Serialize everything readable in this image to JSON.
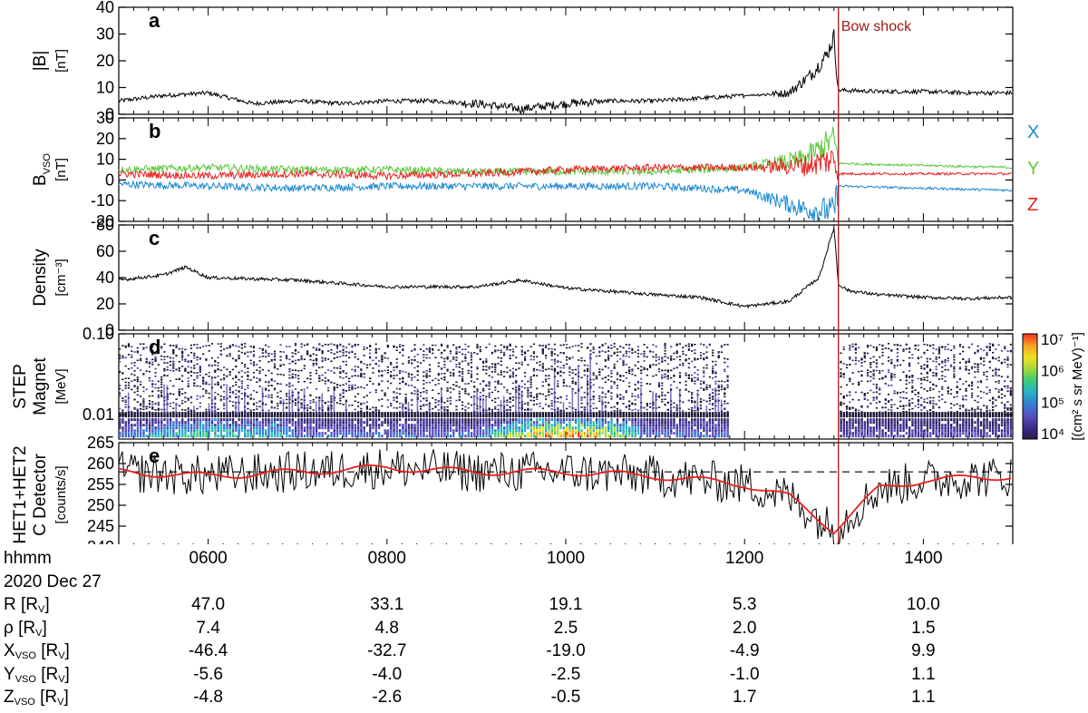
{
  "chart_data": [
    {
      "type": "line",
      "panel_letter": "a",
      "ylabel": "|B|",
      "yunit": "[nT]",
      "ylim": [
        0,
        40
      ],
      "yticks": [
        0,
        10,
        20,
        30,
        40
      ],
      "series": [
        {
          "color": "#000000",
          "x": [
            "0500",
            "0530",
            "0600",
            "0630",
            "0700",
            "0730",
            "0800",
            "0830",
            "0900",
            "0930",
            "1000",
            "1030",
            "1100",
            "1130",
            "1200",
            "1230",
            "1245",
            "1255",
            "1300",
            "1303",
            "1305",
            "1330",
            "1400",
            "1430",
            "1500"
          ],
          "y": [
            5,
            7,
            8,
            4,
            5,
            4,
            5,
            5,
            4,
            2,
            4,
            5,
            5,
            6,
            7,
            8,
            15,
            22,
            29,
            9,
            9,
            8.5,
            8.5,
            8,
            8
          ]
        }
      ]
    },
    {
      "type": "line",
      "panel_letter": "b",
      "ylabel": "B_VSO",
      "yunit": "[nT]",
      "ylim": [
        -20,
        30
      ],
      "yticks": [
        -20,
        -10,
        0,
        10,
        20,
        30
      ],
      "legend": [
        "X",
        "Y",
        "Z"
      ],
      "series": [
        {
          "name": "X",
          "color": "#1a88d0",
          "x": [
            "0500",
            "0600",
            "0700",
            "0800",
            "0900",
            "1000",
            "1100",
            "1200",
            "1240",
            "1300",
            "1303",
            "1400",
            "1500"
          ],
          "y": [
            -2,
            -3,
            -4,
            -3,
            -3,
            -3,
            -3,
            -5,
            -14,
            -15,
            -3,
            -4,
            -5
          ]
        },
        {
          "name": "Y",
          "color": "#5cc83c",
          "x": [
            "0500",
            "0600",
            "0700",
            "0800",
            "0900",
            "1000",
            "1100",
            "1200",
            "1240",
            "1300",
            "1303",
            "1400",
            "1500"
          ],
          "y": [
            5,
            6,
            5,
            5,
            4,
            4,
            4,
            6,
            10,
            20,
            8,
            7,
            6
          ]
        },
        {
          "name": "Z",
          "color": "#e82020",
          "x": [
            "0500",
            "0600",
            "0700",
            "0800",
            "0900",
            "1000",
            "1100",
            "1200",
            "1240",
            "1300",
            "1303",
            "1400",
            "1500"
          ],
          "y": [
            3,
            2,
            3,
            2,
            3,
            5,
            6,
            6,
            7,
            10,
            3,
            3,
            3
          ]
        }
      ]
    },
    {
      "type": "line",
      "panel_letter": "c",
      "ylabel": "Density",
      "yunit": "[cm⁻³]",
      "ylim": [
        0,
        80
      ],
      "yticks": [
        0,
        20,
        40,
        60,
        80
      ],
      "series": [
        {
          "color": "#000000",
          "x": [
            "0500",
            "0530",
            "0545",
            "0600",
            "0700",
            "0800",
            "0900",
            "0930",
            "1000",
            "1100",
            "1130",
            "1200",
            "1230",
            "1250",
            "1300",
            "1303",
            "1310",
            "1330",
            "1400",
            "1430",
            "1500"
          ],
          "y": [
            38,
            42,
            48,
            40,
            38,
            33,
            33,
            38,
            32,
            27,
            25,
            18,
            22,
            40,
            78,
            35,
            30,
            27,
            25,
            24,
            25
          ]
        }
      ]
    },
    {
      "type": "heatmap",
      "panel_letter": "d",
      "ylabel": "STEP Magnet",
      "yunit": "[MeV]",
      "yscale": "log",
      "ylim": [
        0.005,
        0.1
      ],
      "yticks": [
        "0.01",
        "0.10"
      ],
      "colorbar_label": "[(cm² s sr MeV)⁻¹]",
      "colorbar_ticks": [
        "10⁴",
        "10⁵",
        "10⁶",
        "10⁷"
      ],
      "data_gap": [
        "1150",
        "1303"
      ]
    },
    {
      "type": "line",
      "panel_letter": "e",
      "ylabel": "HET1+HET2 C Detector",
      "yunit": "[counts/s]",
      "ylim": [
        240,
        265
      ],
      "yticks": [
        240,
        245,
        250,
        255,
        260,
        265
      ],
      "reference_line": 258,
      "series": [
        {
          "color": "#000000",
          "x": [
            "0500",
            "0600",
            "0700",
            "0800",
            "0900",
            "1000",
            "1100",
            "1200",
            "1230",
            "1300",
            "1330",
            "1400",
            "1500"
          ],
          "y": [
            258,
            257,
            258,
            259,
            258,
            258,
            257,
            255,
            252,
            244,
            254,
            256,
            257
          ]
        },
        {
          "color": "#e82020",
          "x": [
            "0500",
            "0600",
            "0700",
            "0800",
            "0900",
            "1000",
            "1100",
            "1200",
            "1230",
            "1300",
            "1330",
            "1400",
            "1500"
          ],
          "y": [
            258,
            257,
            258,
            259,
            258,
            258,
            257,
            255,
            252,
            244,
            254,
            256,
            257
          ]
        }
      ]
    }
  ],
  "annotation": {
    "label": "Bow shock",
    "time": "1303",
    "color": "#a01818"
  },
  "time_axis": {
    "xlim_minutes": [
      300,
      900
    ],
    "ticks": [
      "0600",
      "0800",
      "1000",
      "1200",
      "1400"
    ]
  },
  "table": {
    "rows": [
      {
        "label": "hhmm",
        "values": [
          "0600",
          "0800",
          "1000",
          "1200",
          "1400"
        ]
      },
      {
        "label": "2020 Dec 27",
        "values": []
      },
      {
        "label": "R [R",
        "sub": "V",
        "suffix": "]",
        "values": [
          "47.0",
          "33.1",
          "19.1",
          "5.3",
          "10.0"
        ]
      },
      {
        "label": "ρ [R",
        "sub": "V",
        "suffix": "]",
        "values": [
          "7.4",
          "4.8",
          "2.5",
          "2.0",
          "1.5"
        ]
      },
      {
        "label": "X",
        "sub": "VSO",
        "suffix": " [R",
        "sub2": "V",
        "suffix2": "]",
        "values": [
          "-46.4",
          "-32.7",
          "-19.0",
          "-4.9",
          "9.9"
        ]
      },
      {
        "label": "Y",
        "sub": "VSO",
        "suffix": " [R",
        "sub2": "V",
        "suffix2": "]",
        "values": [
          "-5.6",
          "-4.0",
          "-2.5",
          "-1.0",
          "1.1"
        ]
      },
      {
        "label": "Z",
        "sub": "VSO",
        "suffix": " [R",
        "sub2": "V",
        "suffix2": "]",
        "values": [
          "-4.8",
          "-2.6",
          "-0.5",
          "1.7",
          "1.1"
        ]
      }
    ]
  }
}
